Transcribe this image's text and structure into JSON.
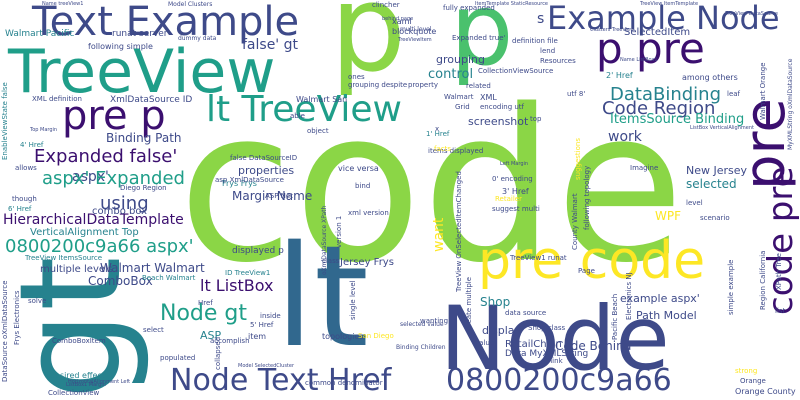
{
  "colors": {
    "dark_purple": "#3b0f6f",
    "indigo": "#3e4a89",
    "blue": "#31688e",
    "teal": "#26828e",
    "teal_green": "#1f9e89",
    "green": "#35b779",
    "light_green": "#6ece58",
    "lime": "#b5de2b",
    "yellow": "#fde725"
  },
  "words": [
    "code",
    "lt",
    "gt",
    "Node",
    "p",
    "p",
    "TreeView",
    "pre",
    "pre code",
    "Text Example",
    "Example Node",
    "p pre",
    "Node Text Href",
    "0800200c9a66",
    "pre p",
    "lt TreeView",
    "code pre",
    "aspx'",
    "Node gt",
    "Expanded false'",
    "DataBinding",
    "Code Region",
    "ItemsSource Binding",
    "HierarchicalDataTemplate",
    "using",
    "aspx' Expanded",
    "0800200c9a66 aspx'",
    "lt ListBox",
    "false' gt",
    "Binding Path",
    "Margin Name",
    "ComboBox",
    "Walmart Walmart",
    "control",
    "grouping",
    "New Jersey",
    "work",
    "selected",
    "want",
    "WPF",
    "Shop",
    "Code Behind",
    "example aspx'",
    "display",
    "Path Model",
    "properties",
    "screenshot",
    "ASP",
    "Jersey Frys",
    "RetailChain",
    "Data MyXMLString",
    "XmlDataSource ID",
    "SelectedItem",
    "multiple levels",
    "combo box",
    "VerticalAlignment Top",
    "Walmart Pacific",
    "runat server",
    "following simple",
    "blockquote",
    "Expanded true'",
    "CollectionViewSource",
    "definition file",
    "lend",
    "Resources",
    "2' Href",
    "among others",
    "Walmart San",
    "ones",
    "related",
    "code pre",
    "1' Href",
    "3' Href",
    "item",
    "inside",
    "5' Href",
    "4' Href",
    "6' Href",
    "ComboBoxItem",
    "CollectionView",
    "Orange County",
    "Beach Walmart",
    "Frys Frys",
    "Shop class",
    "data source",
    "topologies",
    "San Diego",
    "accomplish",
    "populated",
    "desired effect",
    "Imagine",
    "County Walmart",
    "suggest multi",
    "Retailer",
    "encoding utf",
    "0' encoding",
    "level",
    "scenario",
    "list",
    "Page",
    "select",
    "think",
    "value",
    "wanting",
    "XPath Tree",
    "Pacific Beach",
    "Electronics NJ",
    "simple example",
    "Orange",
    "strong",
    "Region California",
    "California",
    "xaml",
    "clincher",
    "fully expanded",
    "Model Clusters",
    "dummy data",
    "multi level",
    "XML definition",
    "Grid",
    "utf 8'",
    "leaf",
    "Walmart Orange",
    "top",
    "property",
    "object",
    "EnableViewState false",
    "ID TreeView1",
    "TreeView ItemsSource",
    "DataSource oXmlDataSource",
    "Frys Electronics",
    "TreeView1 runat",
    "vice versa",
    "common denominator",
    "xml version",
    "bind",
    "class",
    "XML",
    "grouping despite",
    "items displayed",
    "displayed p",
    "false DataSourceID",
    "asp XmlDataSource",
    "Diego Region",
    "allows",
    "though",
    "solve",
    "collapsed",
    "Binding Children",
    "selected value",
    "single level",
    "create multiple",
    "TreeView OnSelectedItemChanged",
    "TreeView ItemTemplate",
    "Top Margin",
    "Left Margin",
    "ListBox VerticalAlignment",
    "MyXMLString oXmlDataSource",
    "TreeView DataSource",
    "HorizontalAlignment Left",
    "ListBox1 Margin",
    "Model SelectedCluster",
    "Name treeView1",
    "Name ListBox1",
    "behind page",
    "TreeViewItem",
    "Clusters TreeView",
    "ItemTemplate StaticResource",
    "oXmlDataSource XPath",
    "Href",
    "ASP Net",
    "version 1",
    "able",
    "facts",
    "suggestions",
    "following topology",
    "data",
    "Walmart",
    "NJ Walmart",
    "x",
    "s"
  ]
}
